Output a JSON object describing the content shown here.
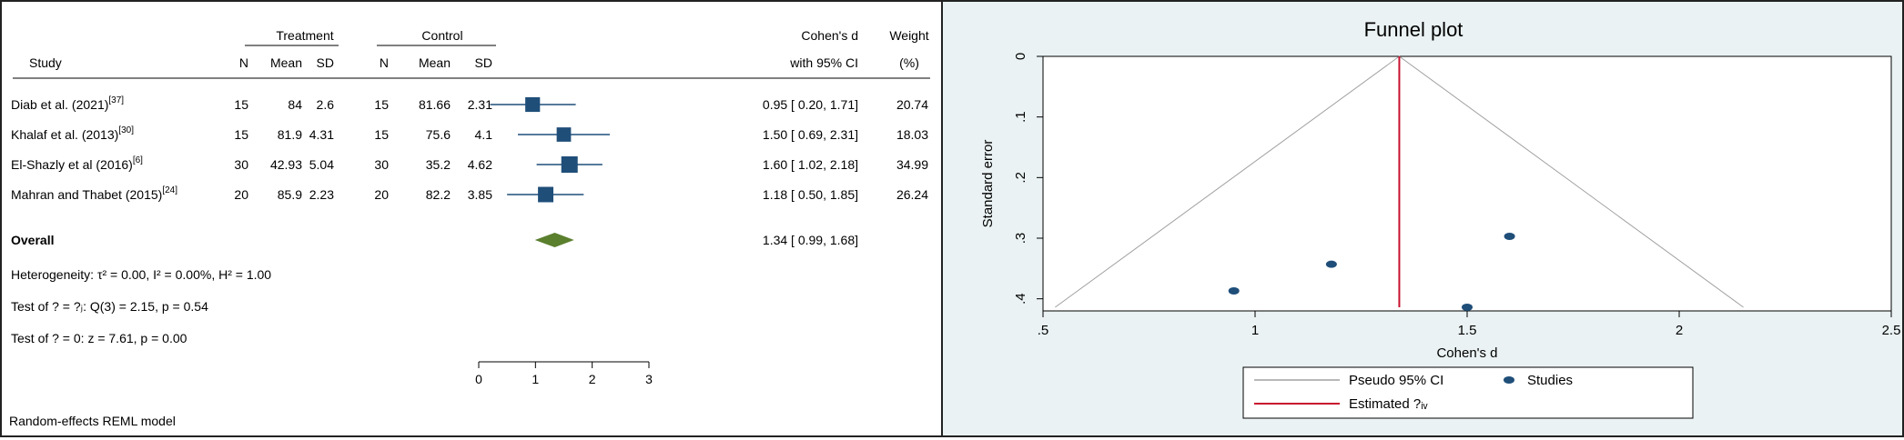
{
  "chart_data": [
    {
      "type": "forest",
      "headers": {
        "treatment": "Treatment",
        "control": "Control",
        "study": "Study",
        "n": "N",
        "mean": "Mean",
        "sd": "SD",
        "effect_line1": "Cohen's d",
        "effect_line2": "with 95% CI",
        "weight_line1": "Weight",
        "weight_line2": "(%)"
      },
      "studies": [
        {
          "name": "Diab et al. (2021)",
          "ref": "[37]",
          "tN": "15",
          "tMean": "84",
          "tSD": "2.6",
          "cN": "15",
          "cMean": "81.66",
          "cSD": "2.31",
          "d": 0.95,
          "lo": 0.2,
          "hi": 1.71,
          "ci_text": "0.95 [ 0.20, 1.71]",
          "weight": "20.74"
        },
        {
          "name": "Khalaf et al. (2013)",
          "ref": "[30]",
          "tN": "15",
          "tMean": "81.9",
          "tSD": "4.31",
          "cN": "15",
          "cMean": "75.6",
          "cSD": "4.1",
          "d": 1.5,
          "lo": 0.69,
          "hi": 2.31,
          "ci_text": "1.50 [ 0.69, 2.31]",
          "weight": "18.03"
        },
        {
          "name": "El-Shazly et al (2016)",
          "ref": "[6]",
          "tN": "30",
          "tMean": "42.93",
          "tSD": "5.04",
          "cN": "30",
          "cMean": "35.2",
          "cSD": "4.62",
          "d": 1.6,
          "lo": 1.02,
          "hi": 2.18,
          "ci_text": "1.60 [ 1.02, 2.18]",
          "weight": "34.99"
        },
        {
          "name": "Mahran and Thabet (2015)",
          "ref": "[24]",
          "tN": "20",
          "tMean": "85.9",
          "tSD": "2.23",
          "cN": "20",
          "cMean": "82.2",
          "cSD": "3.85",
          "d": 1.18,
          "lo": 0.5,
          "hi": 1.85,
          "ci_text": "1.18 [ 0.50, 1.85]",
          "weight": "26.24"
        }
      ],
      "overall": {
        "label": "Overall",
        "d": 1.34,
        "lo": 0.99,
        "hi": 1.68,
        "ci_text": "1.34 [ 0.99, 1.68]"
      },
      "stats": [
        "Heterogeneity: τ² = 0.00, I² = 0.00%, H² = 1.00",
        "Test of ? = ?ⱼ: Q(3) = 2.15, p = 0.54",
        "Test of ? = 0: z = 7.61, p = 0.00"
      ],
      "x_ticks": [
        0,
        1,
        2,
        3
      ],
      "xlim": [
        0,
        3
      ],
      "footnote": "Random-effects REML model",
      "colors": {
        "marker": "#1f4e79",
        "overall": "#5a7f2d"
      }
    },
    {
      "type": "scatter",
      "title": "Funnel plot",
      "xlabel": "Cohen's d",
      "ylabel": "Standard error",
      "xlim": [
        0.5,
        2.5
      ],
      "ylim": [
        0,
        0.42
      ],
      "y_reversed": true,
      "x_ticks": [
        {
          "value": 0.5,
          "label": ".5"
        },
        {
          "value": 1,
          "label": "1"
        },
        {
          "value": 1.5,
          "label": "1.5"
        },
        {
          "value": 2,
          "label": "2"
        },
        {
          "value": 2.5,
          "label": "2.5"
        }
      ],
      "y_ticks": [
        {
          "value": 0,
          "label": "0"
        },
        {
          "value": 0.1,
          "label": ".1"
        },
        {
          "value": 0.2,
          "label": ".2"
        },
        {
          "value": 0.3,
          "label": ".3"
        },
        {
          "value": 0.4,
          "label": ".4"
        }
      ],
      "points": [
        {
          "x": 0.95,
          "y": 0.387
        },
        {
          "x": 1.18,
          "y": 0.343
        },
        {
          "x": 1.5,
          "y": 0.414
        },
        {
          "x": 1.6,
          "y": 0.297
        }
      ],
      "estimate": 1.34,
      "legend": {
        "ci": "Pseudo 95% CI",
        "studies": "Studies",
        "estimate": "Estimated ?ᵢᵥ"
      },
      "colors": {
        "points": "#1f4e79",
        "estimate": "#c8102e",
        "ci": "#a0a0a0",
        "title": "#1f3f66",
        "background": "#eaf2f3"
      }
    }
  ]
}
